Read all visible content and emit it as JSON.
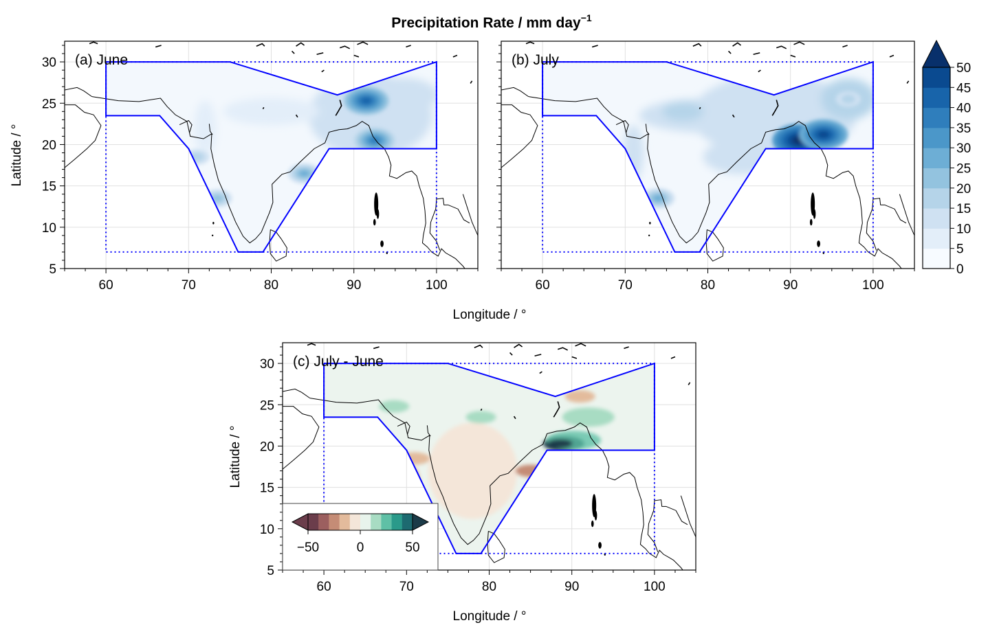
{
  "figure": {
    "title_main": "Precipitation Rate / mm day",
    "title_sup": "−1",
    "xlabel": "Longitude / °",
    "ylabel": "Latitude / °"
  },
  "panels": [
    {
      "id": "a",
      "label": "(a) June"
    },
    {
      "id": "b",
      "label": "(b) July"
    },
    {
      "id": "c",
      "label": "(c) July - June"
    }
  ],
  "axes": {
    "x_ticks": [
      60,
      70,
      80,
      90,
      100
    ],
    "y_ticks": [
      5,
      10,
      15,
      20,
      25,
      30
    ],
    "xlim": [
      55,
      105
    ],
    "ylim": [
      5,
      32.5
    ]
  },
  "colorbar_main": {
    "ticks": [
      0,
      5,
      10,
      15,
      20,
      25,
      30,
      35,
      40,
      45,
      50
    ],
    "extend": "max",
    "colors": [
      "#f7fbff",
      "#e3eef9",
      "#cfe1f2",
      "#b5d4e9",
      "#93c3df",
      "#6daed5",
      "#4b97c9",
      "#2f7ebc",
      "#1864aa",
      "#0a4a90",
      "#08306b"
    ]
  },
  "colorbar_diff": {
    "ticks": [
      -50,
      0,
      50
    ],
    "tick_labels": [
      "−50",
      "0",
      "50"
    ],
    "extend": "both",
    "colors": [
      "#6b3d4b",
      "#9c5f5f",
      "#c58c76",
      "#e3bb9c",
      "#f4e6d9",
      "#e8f4ec",
      "#a8dcc3",
      "#5fc0a6",
      "#2a9a8a",
      "#1d6a70",
      "#1b3b48"
    ]
  },
  "colors": {
    "region_outline": "#0000ff",
    "coast": "#000000",
    "grid": "#e0e0e0"
  },
  "region": {
    "polygon": [
      [
        60,
        30
      ],
      [
        75,
        30
      ],
      [
        88,
        26
      ],
      [
        100,
        30
      ],
      [
        100,
        19.5
      ],
      [
        87,
        19.5
      ],
      [
        79,
        7
      ],
      [
        76,
        7
      ],
      [
        70,
        19.5
      ],
      [
        66.5,
        23.5
      ],
      [
        60,
        23.5
      ],
      [
        60,
        30
      ]
    ],
    "box": {
      "lon": [
        60,
        100
      ],
      "lat": [
        7,
        30
      ]
    }
  },
  "map_data": {
    "type": "filled-contour map",
    "june_maxima": [
      {
        "lon": 91.5,
        "lat": 25.3,
        "value": 40
      },
      {
        "lon": 92.5,
        "lat": 20.5,
        "value": 35
      },
      {
        "lon": 84,
        "lat": 16.5,
        "value": 25
      },
      {
        "lon": 73.5,
        "lat": 13.5,
        "value": 20
      },
      {
        "lon": 71,
        "lat": 18.5,
        "value": 15
      }
    ],
    "july_maxima": [
      {
        "lon": 91,
        "lat": 20.5,
        "value": 50
      },
      {
        "lon": 94,
        "lat": 21.2,
        "value": 45
      },
      {
        "lon": 74,
        "lat": 13.5,
        "value": 25
      },
      {
        "lon": 97,
        "lat": 25.5,
        "value": 15
      }
    ],
    "difference_features": [
      {
        "lon": 89,
        "lat": 20.3,
        "value": 50
      },
      {
        "lon": 85,
        "lat": 17,
        "value": -20
      },
      {
        "lon": 91,
        "lat": 26,
        "value": -15
      },
      {
        "lon": 71,
        "lat": 18.5,
        "value": -10
      },
      {
        "lon": 79,
        "lat": 23.5,
        "value": 10
      },
      {
        "lon": 68.5,
        "lat": 24.8,
        "value": 10
      }
    ]
  }
}
